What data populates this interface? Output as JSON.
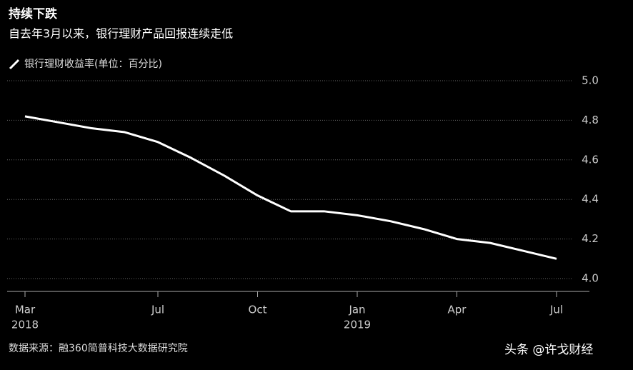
{
  "chart_data": {
    "type": "line",
    "title": "持续下跌",
    "subtitle": "自去年3月以来，银行理财产品回报连续走低",
    "source": "数据来源：融360简普科技大数据研究院",
    "watermark": "头条 @许戈财经",
    "categories": [
      "Mar",
      null,
      null,
      null,
      "Jul",
      null,
      null,
      "Oct",
      null,
      null,
      "Jan",
      null,
      null,
      "Apr",
      null,
      null,
      "Jul"
    ],
    "category_years": [
      "2018",
      null,
      null,
      null,
      null,
      null,
      null,
      null,
      null,
      null,
      "2019",
      null,
      null,
      null,
      null,
      null,
      null
    ],
    "series": [
      {
        "name": "银行理财收益率(单位：百分比)",
        "color": "#ffffff",
        "values": [
          4.82,
          4.79,
          4.76,
          4.74,
          4.69,
          4.61,
          4.52,
          4.42,
          4.34,
          4.34,
          4.32,
          4.29,
          4.25,
          4.2,
          4.18,
          4.14,
          4.1
        ]
      }
    ],
    "ylim": [
      3.935,
      5.0
    ],
    "yticks": [
      {
        "value": 4,
        "label": "4.0"
      },
      4.2,
      4.4,
      4.6,
      4.8,
      {
        "value": 5,
        "label": "5.0"
      }
    ],
    "grid": true
  }
}
